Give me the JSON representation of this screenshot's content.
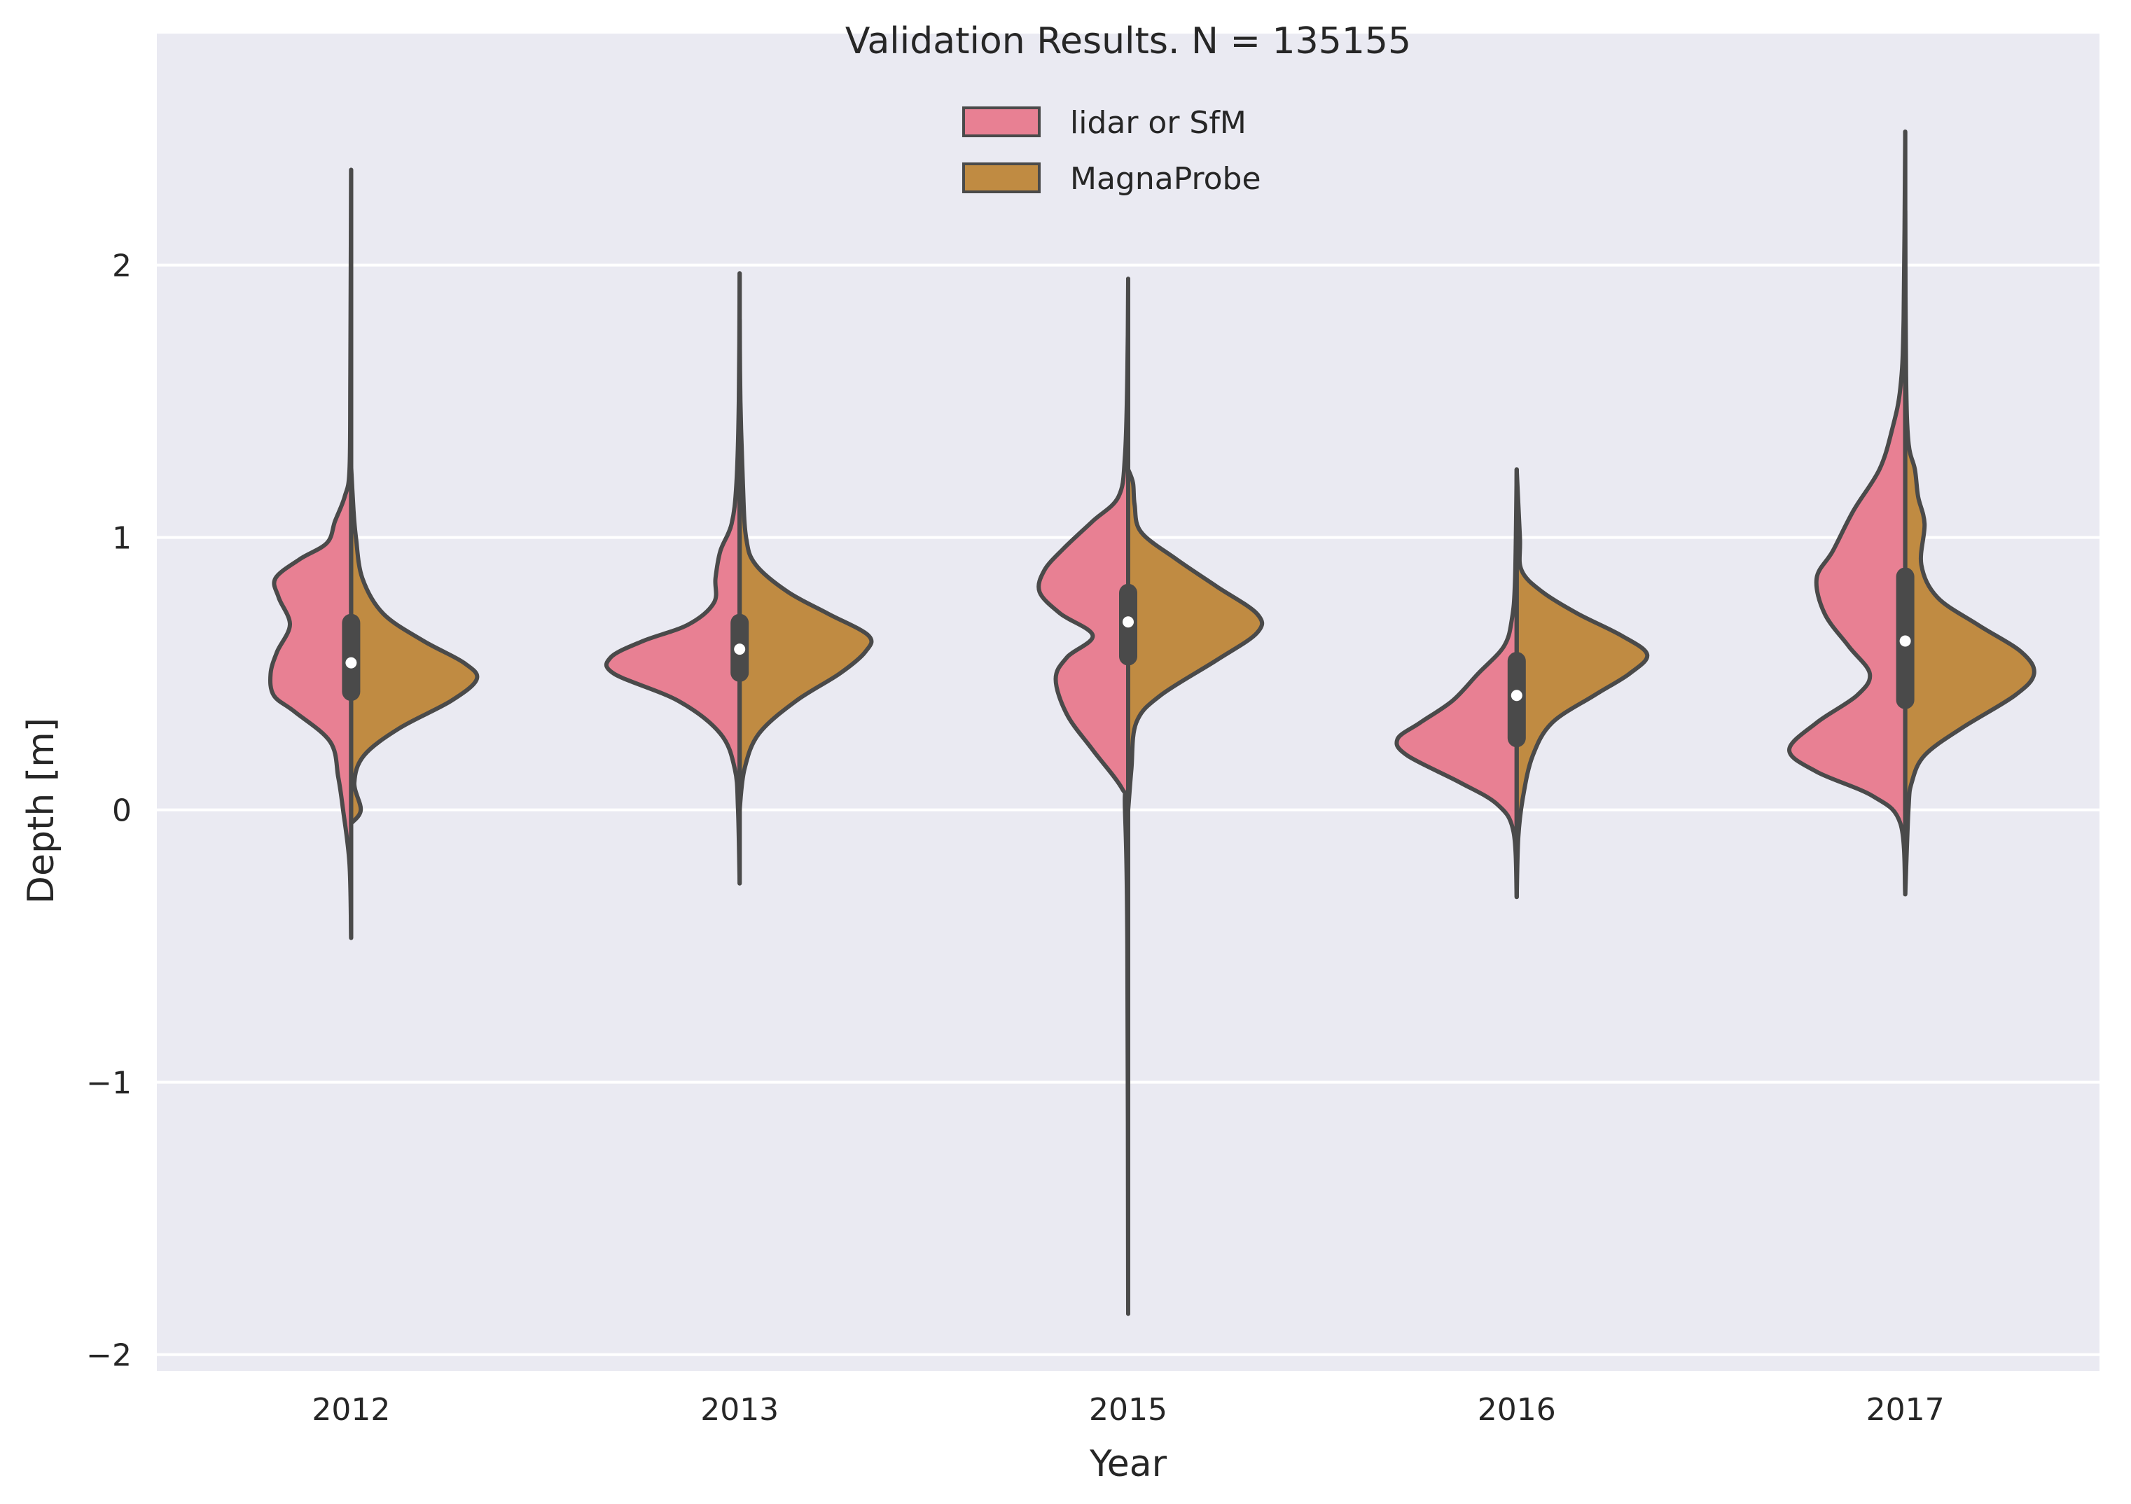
{
  "chart_data": {
    "type": "violin",
    "title": "Validation Results. N = 135155",
    "xlabel": "Year",
    "ylabel": "Depth [m]",
    "categories": [
      "2012",
      "2013",
      "2015",
      "2016",
      "2017"
    ],
    "ylim": [
      -2.06,
      2.85
    ],
    "yticks": [
      -2,
      -1,
      0,
      1,
      2
    ],
    "ytick_labels": [
      "−2",
      "−1",
      "0",
      "1",
      "2"
    ],
    "grid": true,
    "legend": "upper center",
    "colors": {
      "background": "#eaeaf2",
      "grid": "#ffffff",
      "outline": "#4a4a4a",
      "median": "#ffffff"
    },
    "series": [
      {
        "name": "lidar or SfM",
        "color": "#e88093",
        "side": "left",
        "groups": [
          {
            "min": -0.47,
            "max": 2.35,
            "q1": 0.4,
            "median": 0.54,
            "q3": 0.72,
            "density": [
              [
                -0.47,
                0
              ],
              [
                -0.2,
                0.01
              ],
              [
                0.0,
                0.05
              ],
              [
                0.12,
                0.08
              ],
              [
                0.25,
                0.13
              ],
              [
                0.36,
                0.35
              ],
              [
                0.42,
                0.48
              ],
              [
                0.5,
                0.5
              ],
              [
                0.58,
                0.46
              ],
              [
                0.68,
                0.38
              ],
              [
                0.78,
                0.45
              ],
              [
                0.85,
                0.47
              ],
              [
                0.92,
                0.32
              ],
              [
                0.98,
                0.15
              ],
              [
                1.06,
                0.1
              ],
              [
                1.15,
                0.04
              ],
              [
                1.25,
                0.01
              ],
              [
                1.6,
                0.005
              ],
              [
                2.35,
                0
              ]
            ]
          },
          {
            "min": -0.27,
            "max": 1.97,
            "q1": 0.47,
            "median": 0.59,
            "q3": 0.72,
            "density": [
              [
                -0.27,
                0
              ],
              [
                0.0,
                0.01
              ],
              [
                0.15,
                0.03
              ],
              [
                0.28,
                0.12
              ],
              [
                0.4,
                0.38
              ],
              [
                0.5,
                0.78
              ],
              [
                0.56,
                0.8
              ],
              [
                0.62,
                0.6
              ],
              [
                0.68,
                0.32
              ],
              [
                0.76,
                0.16
              ],
              [
                0.85,
                0.15
              ],
              [
                0.95,
                0.12
              ],
              [
                1.05,
                0.05
              ],
              [
                1.2,
                0.02
              ],
              [
                1.5,
                0.005
              ],
              [
                1.97,
                0
              ]
            ]
          },
          {
            "min": -1.85,
            "max": 1.95,
            "q1": 0.53,
            "median": 0.69,
            "q3": 0.83,
            "density": [
              [
                -1.85,
                0
              ],
              [
                -0.5,
                0.005
              ],
              [
                0.0,
                0.02
              ],
              [
                0.08,
                0.04
              ],
              [
                0.22,
                0.22
              ],
              [
                0.35,
                0.38
              ],
              [
                0.48,
                0.45
              ],
              [
                0.56,
                0.38
              ],
              [
                0.64,
                0.22
              ],
              [
                0.72,
                0.42
              ],
              [
                0.8,
                0.55
              ],
              [
                0.88,
                0.52
              ],
              [
                0.96,
                0.4
              ],
              [
                1.06,
                0.22
              ],
              [
                1.15,
                0.06
              ],
              [
                1.3,
                0.02
              ],
              [
                1.6,
                0.005
              ],
              [
                1.95,
                0
              ]
            ]
          },
          {
            "min": -0.32,
            "max": 1.25,
            "q1": 0.23,
            "median": 0.42,
            "q3": 0.58,
            "density": [
              [
                -0.32,
                0
              ],
              [
                -0.08,
                0.02
              ],
              [
                0.02,
                0.12
              ],
              [
                0.1,
                0.35
              ],
              [
                0.2,
                0.68
              ],
              [
                0.26,
                0.74
              ],
              [
                0.32,
                0.6
              ],
              [
                0.4,
                0.4
              ],
              [
                0.5,
                0.24
              ],
              [
                0.6,
                0.08
              ],
              [
                0.7,
                0.03
              ],
              [
                0.85,
                0.01
              ],
              [
                1.25,
                0
              ]
            ]
          },
          {
            "min": -0.31,
            "max": 2.49,
            "q1": 0.37,
            "median": 0.62,
            "q3": 0.89,
            "density": [
              [
                -0.31,
                0
              ],
              [
                -0.05,
                0.03
              ],
              [
                0.05,
                0.2
              ],
              [
                0.14,
                0.55
              ],
              [
                0.22,
                0.72
              ],
              [
                0.32,
                0.55
              ],
              [
                0.42,
                0.3
              ],
              [
                0.5,
                0.22
              ],
              [
                0.6,
                0.35
              ],
              [
                0.72,
                0.5
              ],
              [
                0.85,
                0.55
              ],
              [
                0.95,
                0.45
              ],
              [
                1.1,
                0.32
              ],
              [
                1.25,
                0.16
              ],
              [
                1.4,
                0.08
              ],
              [
                1.55,
                0.03
              ],
              [
                1.8,
                0.01
              ],
              [
                2.49,
                0
              ]
            ]
          }
        ]
      },
      {
        "name": "MagnaProbe",
        "color": "#c08b42",
        "side": "right",
        "groups": [
          {
            "min": -0.05,
            "max": 1.26,
            "q1": 0.4,
            "median": 0.54,
            "q3": 0.72,
            "density": [
              [
                -0.05,
                0
              ],
              [
                0.0,
                0.06
              ],
              [
                0.1,
                0.02
              ],
              [
                0.2,
                0.08
              ],
              [
                0.3,
                0.3
              ],
              [
                0.4,
                0.62
              ],
              [
                0.48,
                0.78
              ],
              [
                0.54,
                0.7
              ],
              [
                0.62,
                0.45
              ],
              [
                0.72,
                0.2
              ],
              [
                0.85,
                0.07
              ],
              [
                1.0,
                0.03
              ],
              [
                1.1,
                0.015
              ],
              [
                1.26,
                0
              ]
            ]
          },
          {
            "min": 0.0,
            "max": 1.8,
            "q1": 0.47,
            "median": 0.59,
            "q3": 0.72,
            "density": [
              [
                0.0,
                0
              ],
              [
                0.15,
                0.03
              ],
              [
                0.28,
                0.12
              ],
              [
                0.4,
                0.35
              ],
              [
                0.5,
                0.62
              ],
              [
                0.58,
                0.78
              ],
              [
                0.64,
                0.8
              ],
              [
                0.72,
                0.55
              ],
              [
                0.8,
                0.3
              ],
              [
                0.9,
                0.1
              ],
              [
                1.0,
                0.04
              ],
              [
                1.2,
                0.02
              ],
              [
                1.5,
                0.005
              ],
              [
                1.8,
                0
              ]
            ]
          },
          {
            "min": 0.0,
            "max": 1.25,
            "q1": 0.53,
            "median": 0.69,
            "q3": 0.83,
            "density": [
              [
                0.0,
                0
              ],
              [
                0.15,
                0.02
              ],
              [
                0.32,
                0.05
              ],
              [
                0.42,
                0.2
              ],
              [
                0.55,
                0.55
              ],
              [
                0.65,
                0.8
              ],
              [
                0.72,
                0.8
              ],
              [
                0.82,
                0.55
              ],
              [
                0.92,
                0.3
              ],
              [
                1.02,
                0.08
              ],
              [
                1.12,
                0.04
              ],
              [
                1.2,
                0.03
              ],
              [
                1.25,
                0
              ]
            ]
          },
          {
            "min": -0.32,
            "max": 1.25,
            "q1": 0.23,
            "median": 0.42,
            "q3": 0.58,
            "density": [
              [
                -0.32,
                0
              ],
              [
                -0.1,
                0.01
              ],
              [
                0.05,
                0.04
              ],
              [
                0.2,
                0.1
              ],
              [
                0.32,
                0.22
              ],
              [
                0.42,
                0.48
              ],
              [
                0.5,
                0.7
              ],
              [
                0.57,
                0.81
              ],
              [
                0.64,
                0.65
              ],
              [
                0.72,
                0.38
              ],
              [
                0.8,
                0.16
              ],
              [
                0.88,
                0.03
              ],
              [
                1.0,
                0.02
              ],
              [
                1.25,
                0
              ]
            ]
          },
          {
            "min": -0.31,
            "max": 2.2,
            "q1": 0.37,
            "median": 0.62,
            "q3": 0.89,
            "density": [
              [
                -0.31,
                0
              ],
              [
                0.0,
                0.02
              ],
              [
                0.1,
                0.04
              ],
              [
                0.2,
                0.12
              ],
              [
                0.3,
                0.35
              ],
              [
                0.42,
                0.68
              ],
              [
                0.5,
                0.8
              ],
              [
                0.58,
                0.72
              ],
              [
                0.68,
                0.45
              ],
              [
                0.78,
                0.2
              ],
              [
                0.9,
                0.1
              ],
              [
                1.05,
                0.12
              ],
              [
                1.15,
                0.08
              ],
              [
                1.25,
                0.06
              ],
              [
                1.35,
                0.02
              ],
              [
                1.6,
                0.005
              ],
              [
                2.2,
                0
              ]
            ]
          }
        ]
      }
    ]
  }
}
